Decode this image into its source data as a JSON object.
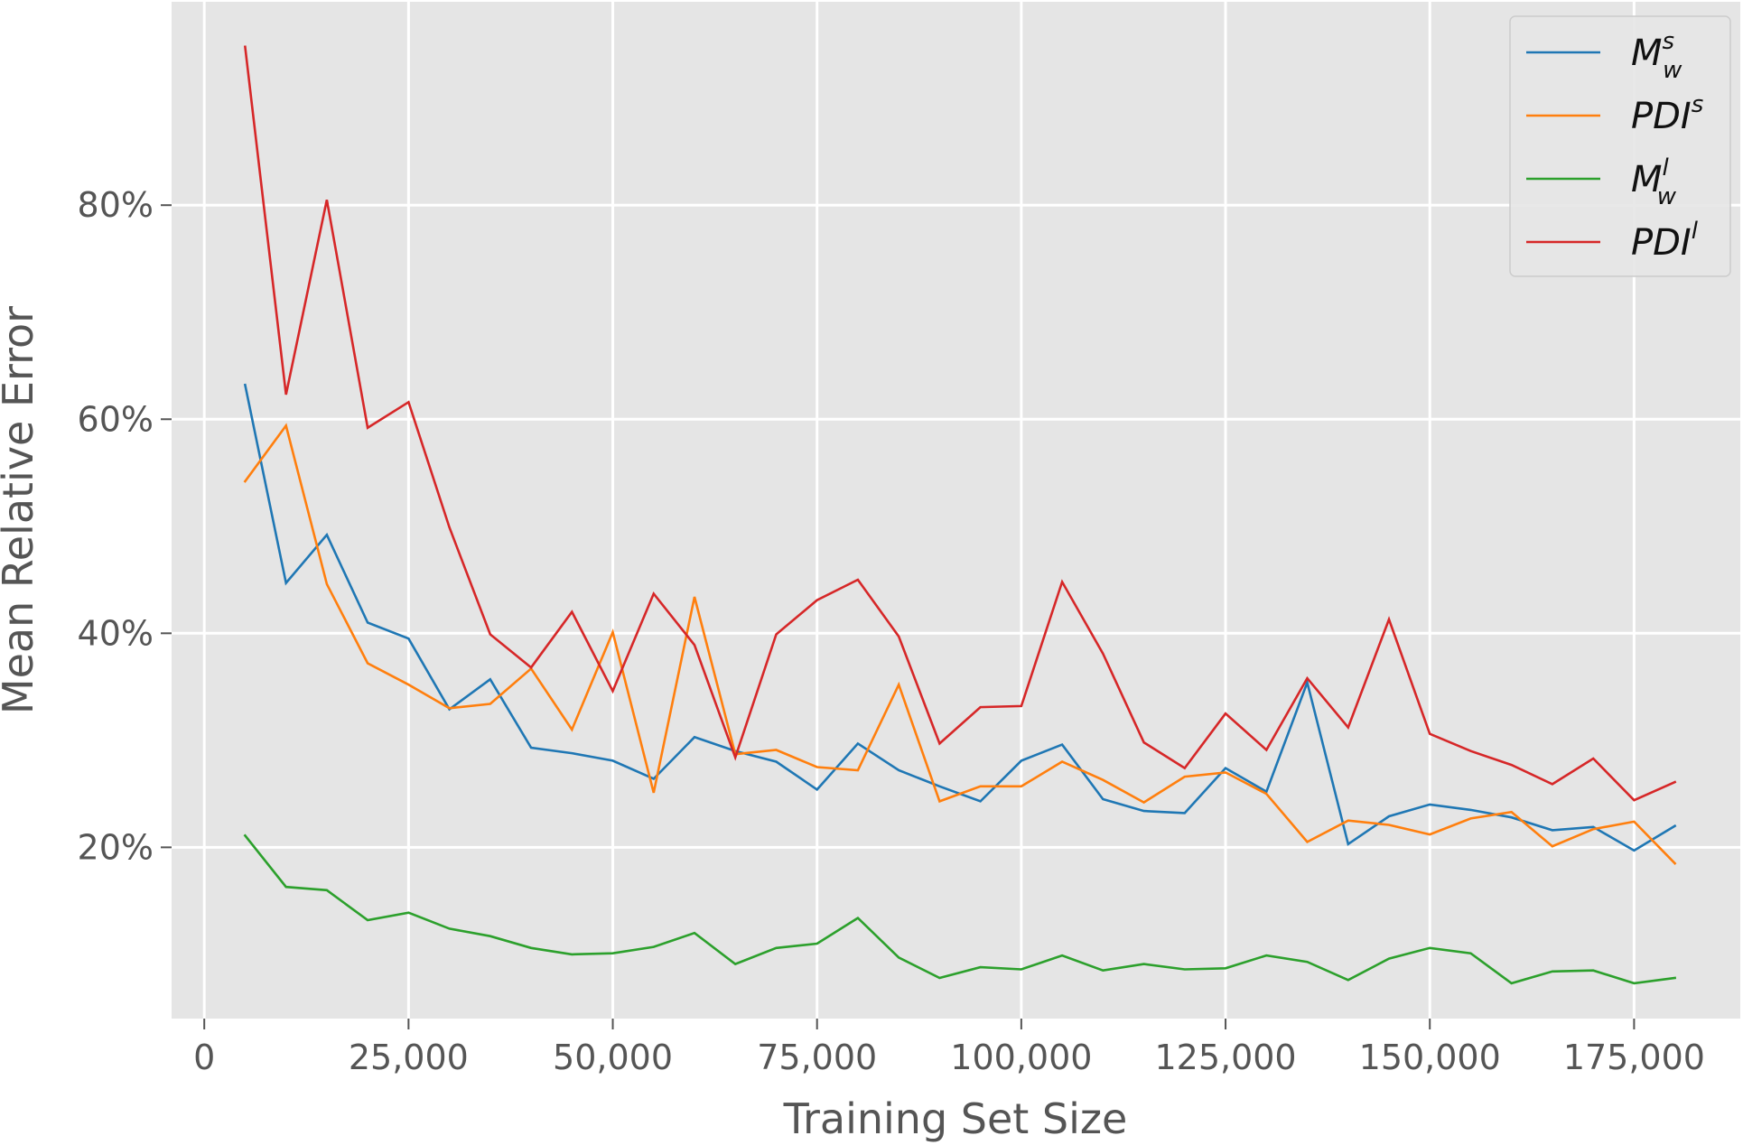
{
  "chart_data": {
    "type": "line",
    "title": "",
    "xlabel": "Training Set Size",
    "ylabel": "Mean Relative Error",
    "xlim": [
      -4000,
      188000
    ],
    "ylim": [
      0.04,
      0.99
    ],
    "grid": true,
    "legend_position": "top-right",
    "x_ticks": [
      0,
      25000,
      50000,
      75000,
      100000,
      125000,
      150000,
      175000
    ],
    "x_tick_labels": [
      "0",
      "25,000",
      "50,000",
      "75,000",
      "100,000",
      "125,000",
      "150,000",
      "175,000"
    ],
    "y_ticks": [
      0.2,
      0.4,
      0.6,
      0.8
    ],
    "y_tick_labels": [
      "20%",
      "40%",
      "60%",
      "80%"
    ],
    "x": [
      5000,
      10000,
      15000,
      20000,
      25000,
      30000,
      35000,
      40000,
      45000,
      50000,
      55000,
      60000,
      65000,
      70000,
      75000,
      80000,
      85000,
      90000,
      95000,
      100000,
      105000,
      110000,
      115000,
      120000,
      125000,
      130000,
      135000,
      140000,
      145000,
      150000,
      155000,
      160000,
      165000,
      170000,
      175000,
      180000
    ],
    "series": [
      {
        "name": "Mw^s",
        "legend": {
          "base": "M",
          "sup": "s",
          "sub": "w"
        },
        "color": "#1f77b4",
        "values": [
          0.632,
          0.447,
          0.492,
          0.41,
          0.395,
          0.329,
          0.357,
          0.293,
          0.288,
          0.281,
          0.264,
          0.303,
          0.29,
          0.28,
          0.254,
          0.297,
          0.272,
          0.257,
          0.243,
          0.281,
          0.296,
          0.245,
          0.234,
          0.232,
          0.274,
          0.252,
          0.354,
          0.203,
          0.229,
          0.24,
          0.235,
          0.228,
          0.216,
          0.219,
          0.197,
          0.22
        ]
      },
      {
        "name": "PDI^s",
        "legend": {
          "base": "PDI",
          "sup": "s",
          "sub": ""
        },
        "color": "#ff7f0e",
        "values": [
          0.542,
          0.594,
          0.446,
          0.372,
          0.352,
          0.33,
          0.334,
          0.367,
          0.31,
          0.401,
          0.251,
          0.434,
          0.287,
          0.291,
          0.275,
          0.272,
          0.352,
          0.243,
          0.257,
          0.257,
          0.28,
          0.263,
          0.242,
          0.266,
          0.27,
          0.25,
          0.205,
          0.225,
          0.221,
          0.212,
          0.227,
          0.233,
          0.201,
          0.217,
          0.224,
          0.185
        ]
      },
      {
        "name": "Mw^l",
        "legend": {
          "base": "M",
          "sup": "l",
          "sub": "w"
        },
        "color": "#2ca02c",
        "values": [
          0.211,
          0.163,
          0.16,
          0.132,
          0.139,
          0.124,
          0.117,
          0.106,
          0.1,
          0.101,
          0.107,
          0.12,
          0.091,
          0.106,
          0.11,
          0.134,
          0.097,
          0.078,
          0.088,
          0.086,
          0.099,
          0.085,
          0.091,
          0.086,
          0.087,
          0.099,
          0.093,
          0.076,
          0.096,
          0.106,
          0.101,
          0.073,
          0.084,
          0.085,
          0.073,
          0.078
        ]
      },
      {
        "name": "PDI^l",
        "legend": {
          "base": "PDI",
          "sup": "l",
          "sub": ""
        },
        "color": "#d62728",
        "values": [
          0.948,
          0.623,
          0.805,
          0.592,
          0.616,
          0.499,
          0.399,
          0.368,
          0.42,
          0.346,
          0.437,
          0.389,
          0.284,
          0.399,
          0.431,
          0.45,
          0.397,
          0.297,
          0.331,
          0.332,
          0.448,
          0.381,
          0.298,
          0.274,
          0.325,
          0.291,
          0.358,
          0.312,
          0.413,
          0.306,
          0.29,
          0.277,
          0.259,
          0.283,
          0.244,
          0.261
        ]
      }
    ]
  }
}
